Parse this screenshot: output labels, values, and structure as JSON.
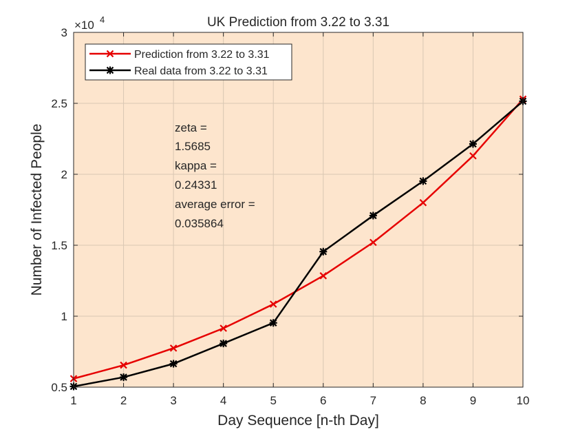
{
  "chart_data": {
    "type": "line",
    "title": "UK Prediction from 3.22 to 3.31",
    "xlabel": "Day Sequence [n-th Day]",
    "ylabel": "Number of Infected People",
    "y_exponent_label": "×10",
    "y_exponent_power": "4",
    "x": [
      1,
      2,
      3,
      4,
      5,
      6,
      7,
      8,
      9,
      10
    ],
    "xlim": [
      1,
      10
    ],
    "ylim": [
      5000,
      30000
    ],
    "xticks": [
      1,
      2,
      3,
      4,
      5,
      6,
      7,
      8,
      9,
      10
    ],
    "xtick_labels": [
      "1",
      "2",
      "3",
      "4",
      "5",
      "6",
      "7",
      "8",
      "9",
      "10"
    ],
    "yticks": [
      5000,
      10000,
      15000,
      20000,
      25000,
      30000
    ],
    "ytick_labels": [
      "0.5",
      "1",
      "1.5",
      "2",
      "2.5",
      "3"
    ],
    "grid": true,
    "background_color": "#fde5cd",
    "legend_position": "top-left",
    "series": [
      {
        "name": "Prediction from 3.22 to 3.31",
        "color": "#e60000",
        "marker": "x",
        "values": [
          5600,
          6550,
          7750,
          9150,
          10850,
          12850,
          15200,
          18000,
          21300,
          25300
        ]
      },
      {
        "name": "Real data from 3.22 to 3.31",
        "color": "#000000",
        "marker": "asterisk",
        "values": [
          5050,
          5700,
          6650,
          8080,
          9530,
          14550,
          17090,
          19520,
          22140,
          25150
        ]
      }
    ],
    "annotation": [
      "zeta =",
      "1.5685",
      "kappa =",
      "0.24331",
      "average error =",
      "0.035864"
    ]
  }
}
